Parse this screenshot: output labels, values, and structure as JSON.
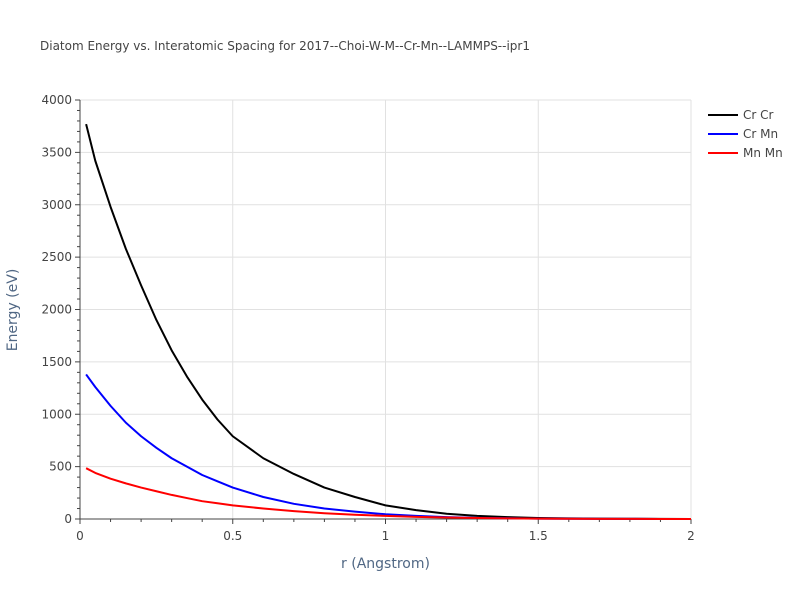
{
  "chart_data": {
    "type": "line",
    "title": "Diatom Energy vs. Interatomic Spacing for 2017--Choi-W-M--Cr-Mn--LAMMPS--ipr1",
    "xlabel": "r (Angstrom)",
    "ylabel": "Energy (eV)",
    "xlim": [
      0,
      2
    ],
    "ylim": [
      0,
      4000
    ],
    "xticks": [
      0,
      0.5,
      1,
      1.5,
      2
    ],
    "xtick_labels": [
      "0",
      "0.5",
      "1",
      "1.5",
      "2"
    ],
    "yticks": [
      0,
      500,
      1000,
      1500,
      2000,
      2500,
      3000,
      3500,
      4000
    ],
    "ytick_labels": [
      "0",
      "500",
      "1000",
      "1500",
      "2000",
      "2500",
      "3000",
      "3500",
      "4000"
    ],
    "grid": true,
    "legend": "top-right",
    "series": [
      {
        "name": "Cr Cr",
        "color": "#000000",
        "x": [
          0.02,
          0.05,
          0.1,
          0.15,
          0.2,
          0.25,
          0.3,
          0.35,
          0.4,
          0.45,
          0.5,
          0.6,
          0.7,
          0.8,
          0.9,
          1.0,
          1.1,
          1.2,
          1.3,
          1.4,
          1.5,
          1.6,
          1.7,
          1.8,
          1.9,
          2.0
        ],
        "y": [
          3770,
          3420,
          2980,
          2580,
          2230,
          1900,
          1610,
          1360,
          1140,
          950,
          790,
          580,
          430,
          300,
          210,
          130,
          85,
          50,
          30,
          18,
          10,
          6,
          4,
          2,
          1,
          0
        ]
      },
      {
        "name": "Cr Mn",
        "color": "#0000ff",
        "x": [
          0.02,
          0.05,
          0.1,
          0.15,
          0.2,
          0.25,
          0.3,
          0.35,
          0.4,
          0.45,
          0.5,
          0.6,
          0.7,
          0.8,
          0.9,
          1.0,
          1.1,
          1.2,
          1.3,
          1.4,
          1.5,
          1.6,
          1.7,
          1.8,
          1.9,
          2.0
        ],
        "y": [
          1380,
          1260,
          1080,
          920,
          790,
          680,
          580,
          500,
          420,
          360,
          300,
          210,
          145,
          100,
          70,
          45,
          30,
          18,
          11,
          7,
          4,
          2,
          1,
          1,
          0,
          0
        ]
      },
      {
        "name": "Mn Mn",
        "color": "#ff0000",
        "x": [
          0.02,
          0.05,
          0.1,
          0.15,
          0.2,
          0.25,
          0.3,
          0.35,
          0.4,
          0.45,
          0.5,
          0.6,
          0.7,
          0.8,
          0.9,
          1.0,
          1.1,
          1.2,
          1.3,
          1.4,
          1.5,
          1.6,
          1.7,
          1.8,
          1.9,
          2.0
        ],
        "y": [
          485,
          440,
          385,
          340,
          300,
          265,
          230,
          200,
          170,
          150,
          130,
          100,
          75,
          55,
          40,
          30,
          20,
          14,
          9,
          6,
          4,
          2,
          1,
          1,
          0,
          0
        ]
      }
    ]
  }
}
